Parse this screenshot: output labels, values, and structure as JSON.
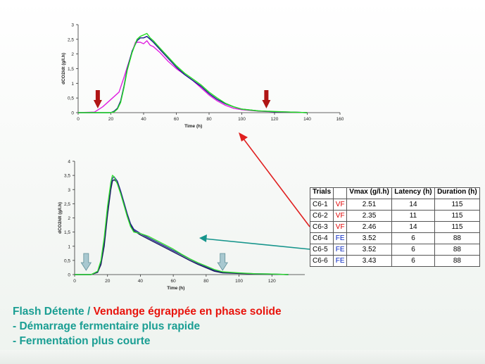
{
  "chart_data": [
    {
      "type": "line",
      "ylabel": "dCO2/dt (g/l.h)",
      "xlabel": "Time (h)",
      "xlim": [
        0,
        160
      ],
      "ylim": [
        0,
        3
      ],
      "xticks": [
        0,
        20,
        40,
        60,
        80,
        100,
        120,
        140,
        160
      ],
      "yticks": [
        0,
        0.5,
        1,
        1.5,
        2,
        2.5,
        3
      ],
      "series": [
        {
          "color": "#e020e0",
          "x": [
            0,
            10,
            15,
            20,
            25,
            28,
            32,
            35,
            38,
            40,
            42,
            44,
            46,
            50,
            55,
            60,
            65,
            70,
            75,
            80,
            85,
            90,
            95,
            100,
            110,
            120,
            130,
            140
          ],
          "y": [
            0,
            0.02,
            0.2,
            0.45,
            0.7,
            1.2,
            1.9,
            2.4,
            2.4,
            2.35,
            2.45,
            2.3,
            2.25,
            2.05,
            1.75,
            1.5,
            1.3,
            1.1,
            0.85,
            0.6,
            0.4,
            0.25,
            0.15,
            0.1,
            0.05,
            0.03,
            0.02,
            0
          ]
        },
        {
          "color": "#1a1a8a",
          "x": [
            0,
            20,
            22,
            24,
            26,
            28,
            30,
            33,
            36,
            38,
            40,
            42,
            44,
            46,
            50,
            55,
            60,
            65,
            70,
            75,
            80,
            85,
            90,
            95,
            100,
            110,
            120,
            130,
            140
          ],
          "y": [
            0,
            0,
            0.05,
            0.15,
            0.4,
            0.9,
            1.5,
            2.1,
            2.45,
            2.55,
            2.55,
            2.6,
            2.5,
            2.4,
            2.15,
            1.85,
            1.55,
            1.3,
            1.1,
            0.9,
            0.65,
            0.45,
            0.3,
            0.2,
            0.12,
            0.06,
            0.03,
            0.02,
            0
          ]
        },
        {
          "color": "#22dd22",
          "x": [
            0,
            20,
            22,
            24,
            26,
            28,
            30,
            33,
            36,
            38,
            40,
            42,
            44,
            46,
            50,
            55,
            60,
            65,
            70,
            75,
            80,
            85,
            90,
            95,
            100,
            110,
            120,
            130,
            140
          ],
          "y": [
            0,
            0,
            0.03,
            0.12,
            0.35,
            0.85,
            1.45,
            2.05,
            2.5,
            2.6,
            2.65,
            2.7,
            2.55,
            2.45,
            2.2,
            1.9,
            1.6,
            1.35,
            1.15,
            0.95,
            0.7,
            0.5,
            0.32,
            0.2,
            0.12,
            0.06,
            0.04,
            0.02,
            0
          ]
        }
      ],
      "markers": [
        {
          "x": 12,
          "color": "#b01515"
        },
        {
          "x": 115,
          "color": "#b01515"
        }
      ]
    },
    {
      "type": "line",
      "ylabel": "dCO2/dt (g/l.h)",
      "xlabel": "Time (h)",
      "xlim": [
        0,
        140
      ],
      "ylim": [
        0,
        4
      ],
      "xticks": [
        0,
        20,
        40,
        60,
        80,
        100,
        120
      ],
      "yticks": [
        0,
        0.5,
        1,
        1.5,
        2,
        2.5,
        3,
        3.5,
        4
      ],
      "series": [
        {
          "color": "#2a2a9a",
          "x": [
            0,
            10,
            14,
            16,
            18,
            20,
            22,
            23,
            24,
            26,
            28,
            30,
            32,
            34,
            36,
            40,
            45,
            50,
            55,
            60,
            65,
            70,
            75,
            80,
            85,
            90,
            100,
            110,
            120,
            130
          ],
          "y": [
            0,
            0,
            0.1,
            0.4,
            1.1,
            2.2,
            3.1,
            3.4,
            3.45,
            3.3,
            2.95,
            2.55,
            2.15,
            1.8,
            1.6,
            1.45,
            1.3,
            1.15,
            1.0,
            0.85,
            0.7,
            0.55,
            0.4,
            0.28,
            0.15,
            0.08,
            0.05,
            0.03,
            0.02,
            0
          ]
        },
        {
          "color": "#1a1a60",
          "x": [
            0,
            10,
            14,
            16,
            18,
            20,
            22,
            23,
            24,
            26,
            28,
            30,
            32,
            34,
            36,
            40,
            45,
            50,
            55,
            60,
            65,
            70,
            75,
            80,
            85,
            90,
            100,
            110,
            120,
            130
          ],
          "y": [
            0,
            0,
            0.08,
            0.35,
            1.0,
            2.1,
            3.0,
            3.3,
            3.35,
            3.25,
            2.9,
            2.5,
            2.1,
            1.75,
            1.55,
            1.4,
            1.25,
            1.1,
            0.95,
            0.8,
            0.65,
            0.5,
            0.36,
            0.24,
            0.12,
            0.06,
            0.04,
            0.02,
            0.01,
            0
          ]
        },
        {
          "color": "#33dd33",
          "x": [
            0,
            10,
            14,
            16,
            18,
            20,
            22,
            23,
            24,
            26,
            28,
            30,
            32,
            34,
            36,
            40,
            45,
            50,
            55,
            60,
            65,
            70,
            75,
            80,
            85,
            90,
            100,
            110,
            120,
            130
          ],
          "y": [
            0,
            0,
            0.12,
            0.5,
            1.3,
            2.4,
            3.25,
            3.5,
            3.45,
            3.2,
            2.85,
            2.45,
            2.05,
            1.7,
            1.5,
            1.45,
            1.35,
            1.2,
            1.05,
            0.9,
            0.72,
            0.56,
            0.42,
            0.3,
            0.18,
            0.1,
            0.06,
            0.03,
            0.02,
            0
          ]
        }
      ],
      "markers": [
        {
          "x": 7,
          "color": "#a8c8d0"
        },
        {
          "x": 90,
          "color": "#a8c8d0"
        }
      ]
    }
  ],
  "table": {
    "headers": [
      "Trials",
      "",
      "Vmax (g/l.h)",
      "Latency (h)",
      "Duration (h)"
    ],
    "rows": [
      {
        "trial": "C6-1",
        "cond": "VF",
        "vmax": "2.51",
        "latency": "14",
        "duration": "115"
      },
      {
        "trial": "C6-2",
        "cond": "VF",
        "vmax": "2.35",
        "latency": "11",
        "duration": "115"
      },
      {
        "trial": "C6-3",
        "cond": "VF",
        "vmax": "2.46",
        "latency": "14",
        "duration": "115"
      },
      {
        "trial": "C6-4",
        "cond": "FE",
        "vmax": "3.52",
        "latency": "6",
        "duration": "88"
      },
      {
        "trial": "C6-5",
        "cond": "FE",
        "vmax": "3.52",
        "latency": "6",
        "duration": "88"
      },
      {
        "trial": "C6-6",
        "cond": "FE",
        "vmax": "3.43",
        "latency": "6",
        "duration": "88"
      }
    ]
  },
  "caption": {
    "line1_teal": "Flash Détente / ",
    "line1_red": "Vendange égrappée en phase solide",
    "line2": "- Démarrage fermentaire plus rapide",
    "line3": "- Fermentation plus courte"
  },
  "colors": {
    "teal": "#1a9e93",
    "red": "#e8130c",
    "arrow_red": "#e02020",
    "arrow_teal": "#16958c"
  }
}
